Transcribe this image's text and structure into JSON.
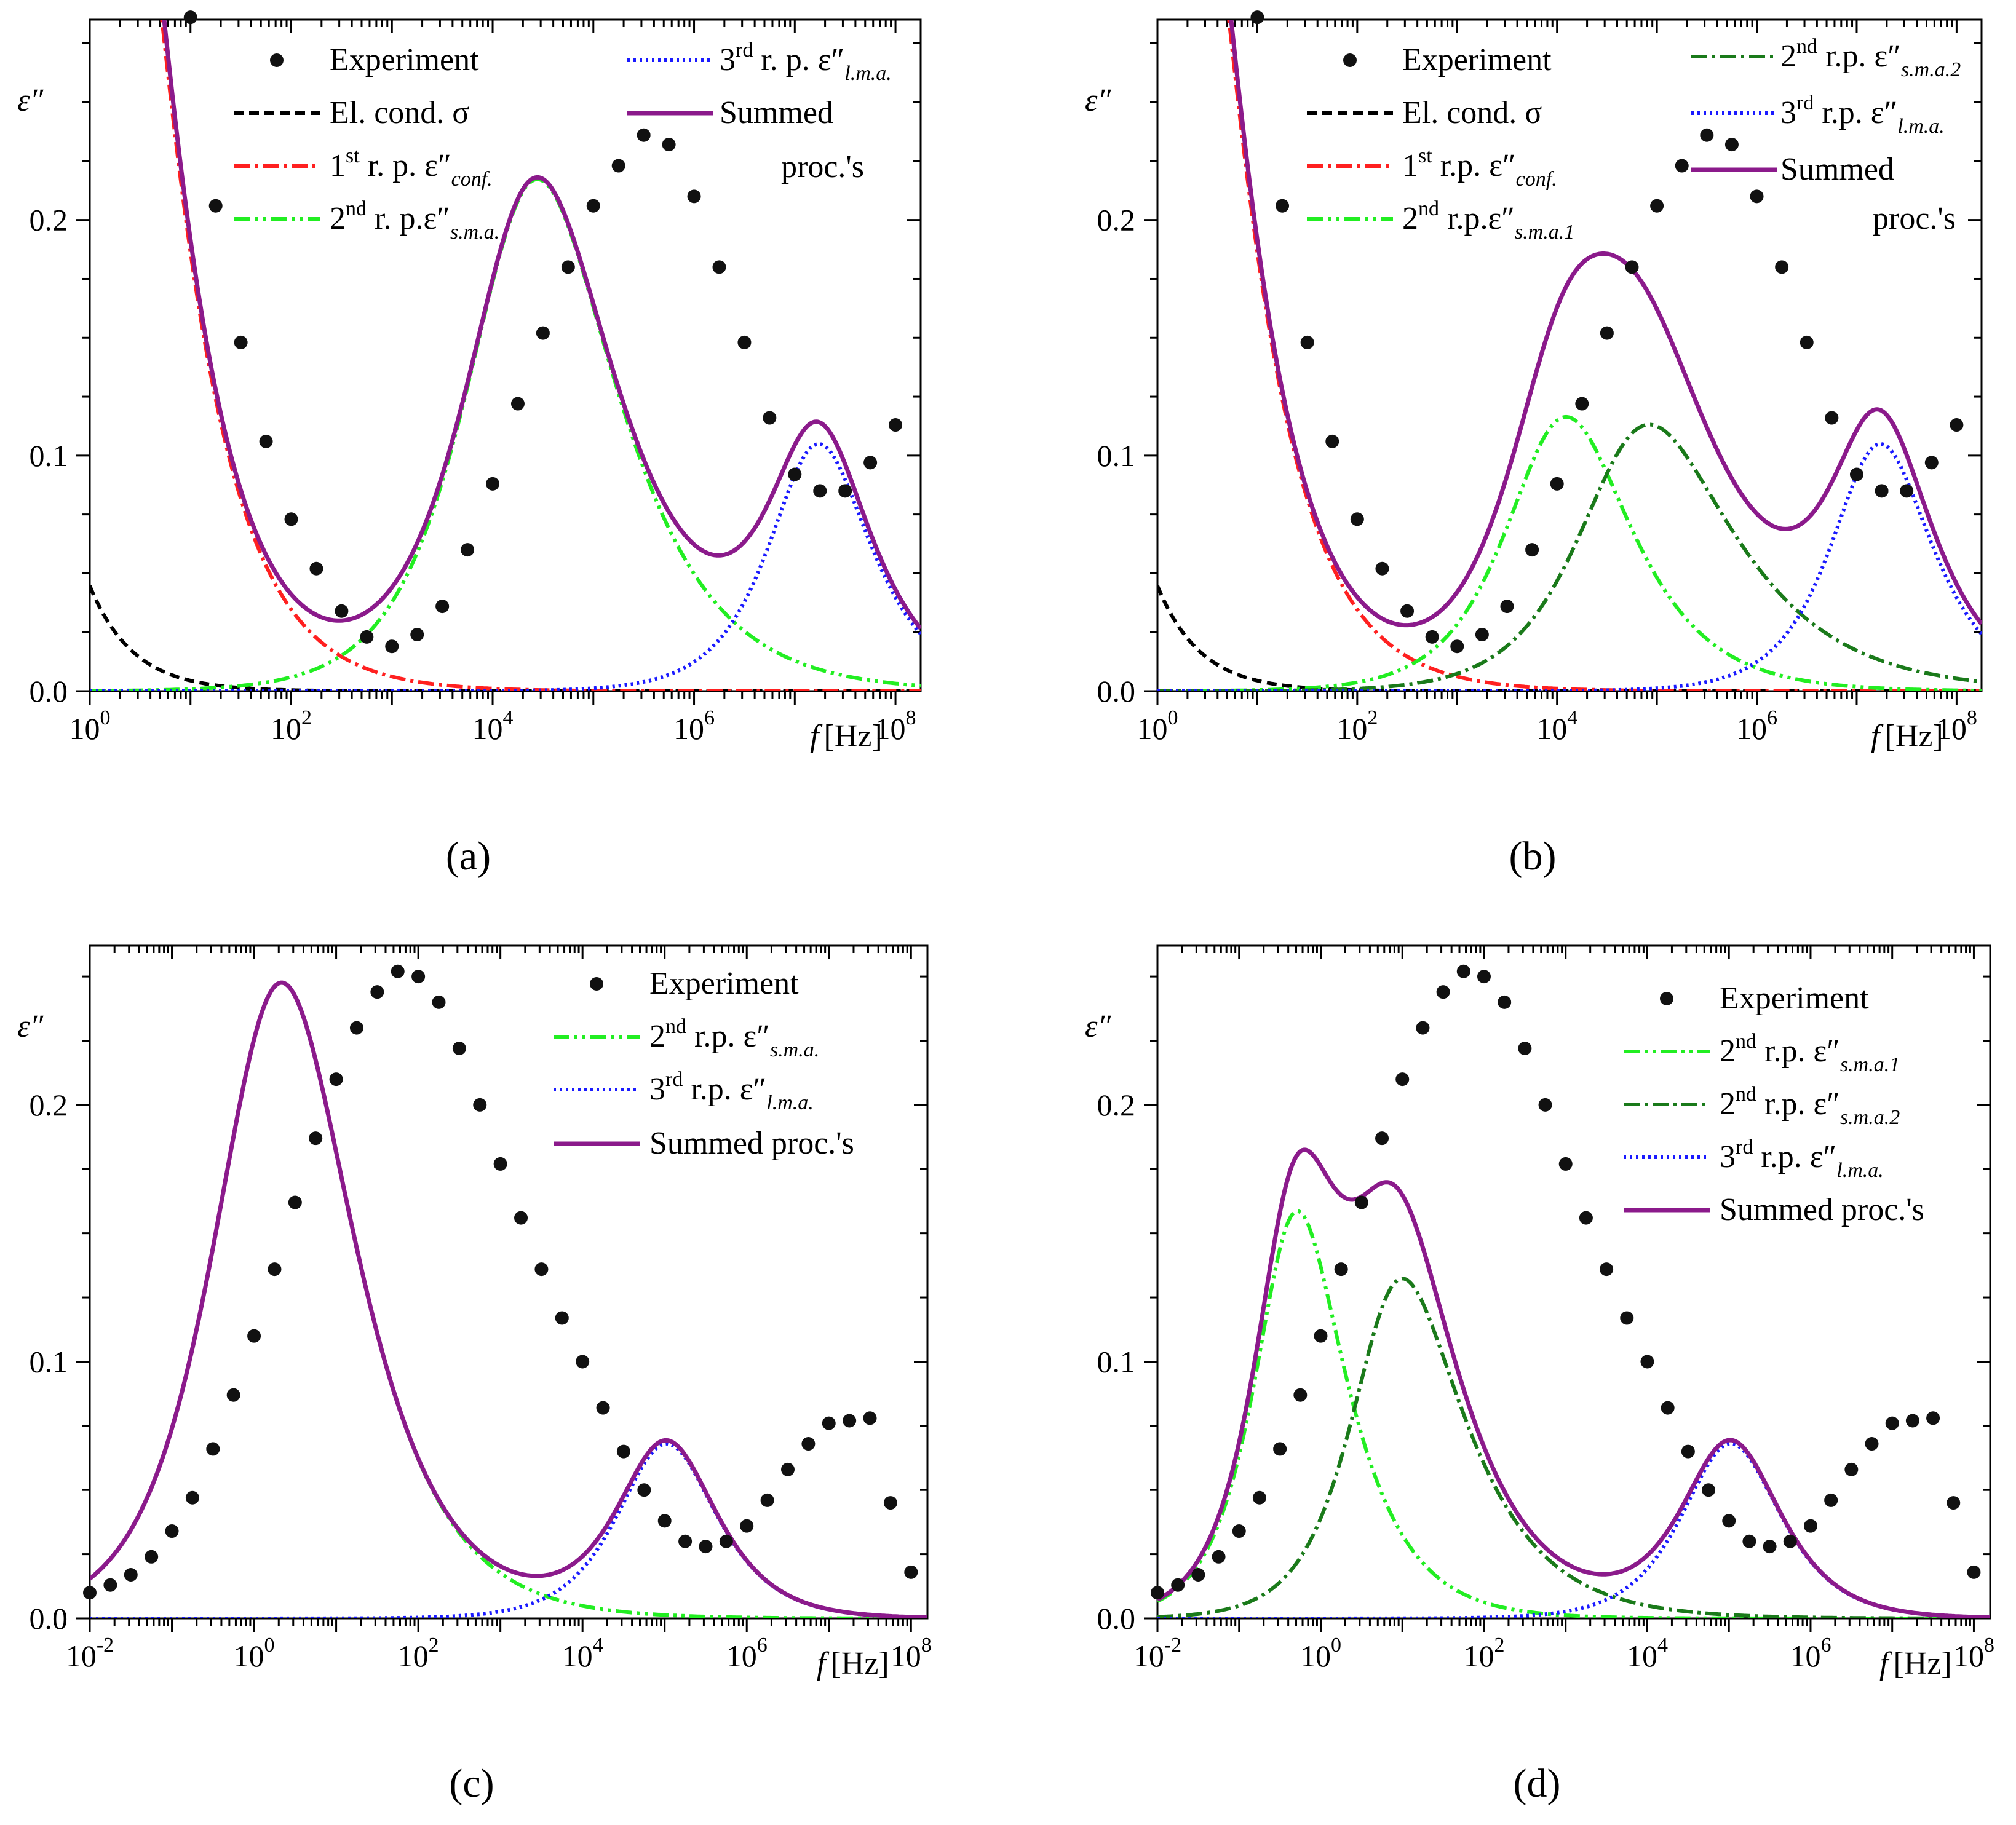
{
  "figure": {
    "panels": [
      {
        "label": "(a)",
        "y_axis_symbol": "ε″",
        "x_axis_label_f": "f",
        "x_axis_label_unit": "[Hz]",
        "legend": {
          "experiment": "Experiment",
          "el_cond": "El. cond. σ",
          "r1_prefix": "1",
          "r1_sup": "st",
          "r1_mid": " r. p. ε″",
          "r1_sub": "conf.",
          "r2a_prefix": "2",
          "r2a_sup": "nd",
          "r2a_mid": " r. p.ε″",
          "r2a_sub": "s.m.a.",
          "r3_prefix": "3",
          "r3_sup": "rd",
          "r3_mid": " r. p. ε″",
          "r3_sub": "l.m.a.",
          "summed_1": "Summed",
          "summed_2": "proc.'s"
        }
      },
      {
        "label": "(b)",
        "y_axis_symbol": "ε″",
        "x_axis_label_f": "f",
        "x_axis_label_unit": "[Hz]",
        "legend": {
          "experiment": "Experiment",
          "el_cond": "El. cond. σ",
          "r1_prefix": "1",
          "r1_sup": "st",
          "r1_mid": " r.p. ε″",
          "r1_sub": "conf.",
          "r2a_prefix": "2",
          "r2a_sup": "nd",
          "r2a_mid": " r.p.ε″",
          "r2a_sub": "s.m.a.1",
          "r2b_prefix": "2",
          "r2b_sup": "nd",
          "r2b_mid": " r.p. ε″",
          "r2b_sub": "s.m.a.2",
          "r3_prefix": "3",
          "r3_sup": "rd",
          "r3_mid": " r.p. ε″",
          "r3_sub": "l.m.a.",
          "summed_1": "Summed",
          "summed_2": "proc.'s"
        }
      },
      {
        "label": "(c)",
        "y_axis_symbol": "ε″",
        "x_axis_label_f": "f",
        "x_axis_label_unit": "[Hz]",
        "legend": {
          "experiment": "Experiment",
          "r2a_prefix": "2",
          "r2a_sup": "nd",
          "r2a_mid": " r.p. ε″",
          "r2a_sub": "s.m.a.",
          "r3_prefix": "3",
          "r3_sup": "rd",
          "r3_mid": " r.p. ε″",
          "r3_sub": "l.m.a.",
          "summed": "Summed proc.'s"
        }
      },
      {
        "label": "(d)",
        "y_axis_symbol": "ε″",
        "x_axis_label_f": "f",
        "x_axis_label_unit": "[Hz]",
        "legend": {
          "experiment": "Experiment",
          "r2a_prefix": "2",
          "r2a_sup": "nd",
          "r2a_mid": " r.p. ε″",
          "r2a_sub": "s.m.a.1",
          "r2b_prefix": "2",
          "r2b_sup": "nd",
          "r2b_mid": " r.p. ε″",
          "r2b_sub": "s.m.a.2",
          "r3_prefix": "3",
          "r3_sup": "rd",
          "r3_mid": " r.p. ε″",
          "r3_sub": "l.m.a.",
          "summed": "Summed proc.'s"
        }
      }
    ]
  },
  "colors": {
    "experiment": "#111111",
    "el_cond": "#000000",
    "r1": "#ff2020",
    "r2_light": "#22ee22",
    "r2_dark": "#1a7a1a",
    "r3": "#1a1aff",
    "summed": "#8b1a8b"
  },
  "chart_data": [
    {
      "type": "scatter",
      "panel": "(a)",
      "title": "",
      "xlabel": "f [Hz]",
      "ylabel": "ε″",
      "x_scale": "log",
      "xlim_log10": [
        0,
        8.25
      ],
      "ylim": [
        0,
        0.285
      ],
      "x_ticks_log10": [
        0,
        2,
        4,
        6,
        8
      ],
      "y_ticks": [
        0.0,
        0.1,
        0.2
      ],
      "y_tick_labels": [
        "0.0",
        "0.1",
        "0.2"
      ],
      "models": {
        "sigma": {
          "log10_A": -1.35,
          "slope": 1.0
        },
        "conf": {
          "de": 1.0,
          "log10_tau": -0.9,
          "alpha": 0.0,
          "beta": 0.75
        },
        "sma1": {
          "de": 0.66,
          "log10_tau": -5.1,
          "alpha": 0.18,
          "beta": 0.73
        },
        "lma": {
          "de": 0.22,
          "log10_tau": -8.0,
          "alpha": 0.0,
          "beta": 0.9
        }
      },
      "series": [
        {
          "name": "Experiment",
          "log10_f": [
            1,
            1.25,
            1.5,
            1.75,
            2,
            2.25,
            2.5,
            2.75,
            3,
            3.25,
            3.5,
            3.75,
            4,
            4.25,
            4.5,
            4.75,
            5,
            5.25,
            5.5,
            5.75,
            6,
            6.25,
            6.5,
            6.75,
            7,
            7.25,
            7.5,
            7.75,
            8
          ],
          "values": [
            0.286,
            0.206,
            0.148,
            0.106,
            0.073,
            0.052,
            0.034,
            0.023,
            0.019,
            0.024,
            0.036,
            0.06,
            0.088,
            0.122,
            0.152,
            0.18,
            0.206,
            0.223,
            0.236,
            0.232,
            0.21,
            0.18,
            0.148,
            0.116,
            0.092,
            0.085,
            0.085,
            0.097,
            0.113
          ]
        },
        {
          "name": "El. cond. σ",
          "model": "sigma"
        },
        {
          "name": "1st r. p. ε″conf.",
          "model": "conf"
        },
        {
          "name": "2nd r. p. ε″s.m.a.",
          "model": "sma1"
        },
        {
          "name": "3rd r. p. ε″l.m.a.",
          "model": "lma"
        },
        {
          "name": "Summed proc.'s",
          "model": "sum"
        }
      ]
    },
    {
      "type": "scatter",
      "panel": "(b)",
      "title": "",
      "xlabel": "f [Hz]",
      "ylabel": "ε″",
      "x_scale": "log",
      "xlim_log10": [
        0,
        8.25
      ],
      "ylim": [
        0,
        0.285
      ],
      "x_ticks_log10": [
        0,
        2,
        4,
        6,
        8
      ],
      "y_ticks": [
        0.0,
        0.1,
        0.2
      ],
      "y_tick_labels": [
        "0.0",
        "0.1",
        "0.2"
      ],
      "models": {
        "sigma": {
          "log10_A": -1.35,
          "slope": 1.0
        },
        "conf": {
          "de": 1.0,
          "log10_tau": -0.9,
          "alpha": 0.0,
          "beta": 0.75
        },
        "sma1": {
          "de": 0.3,
          "log10_tau": -4.8,
          "alpha": 0.1,
          "beta": 0.8
        },
        "sma2": {
          "de": 0.36,
          "log10_tau": -5.5,
          "alpha": 0.15,
          "beta": 0.6
        },
        "lma": {
          "de": 0.22,
          "log10_tau": -8.0,
          "alpha": 0.0,
          "beta": 0.9
        }
      },
      "series": [
        {
          "name": "Experiment",
          "log10_f": [
            1,
            1.25,
            1.5,
            1.75,
            2,
            2.25,
            2.5,
            2.75,
            3,
            3.25,
            3.5,
            3.75,
            4,
            4.25,
            4.5,
            4.75,
            5,
            5.25,
            5.5,
            5.75,
            6,
            6.25,
            6.5,
            6.75,
            7,
            7.25,
            7.5,
            7.75,
            8
          ],
          "values": [
            0.286,
            0.206,
            0.148,
            0.106,
            0.073,
            0.052,
            0.034,
            0.023,
            0.019,
            0.024,
            0.036,
            0.06,
            0.088,
            0.122,
            0.152,
            0.18,
            0.206,
            0.223,
            0.236,
            0.232,
            0.21,
            0.18,
            0.148,
            0.116,
            0.092,
            0.085,
            0.085,
            0.097,
            0.113
          ]
        },
        {
          "name": "El. cond. σ",
          "model": "sigma"
        },
        {
          "name": "1st r.p. ε″conf.",
          "model": "conf"
        },
        {
          "name": "2nd r.p. ε″s.m.a.1",
          "model": "sma1"
        },
        {
          "name": "2nd r.p. ε″s.m.a.2",
          "model": "sma2"
        },
        {
          "name": "3rd r.p. ε″l.m.a.",
          "model": "lma"
        },
        {
          "name": "Summed proc.'s",
          "model": "sum"
        }
      ]
    },
    {
      "type": "scatter",
      "panel": "(c)",
      "title": "",
      "xlabel": "f [Hz]",
      "ylabel": "ε″",
      "x_scale": "log",
      "xlim_log10": [
        -2,
        8.2
      ],
      "ylim": [
        0,
        0.262
      ],
      "x_ticks_log10": [
        -2,
        0,
        2,
        4,
        6,
        8
      ],
      "y_ticks": [
        0.0,
        0.1,
        0.2
      ],
      "y_tick_labels": [
        "0.0",
        "0.1",
        "0.2"
      ],
      "models": {
        "sma1": {
          "de": 0.86,
          "log10_tau": -1.0,
          "alpha": 0.28,
          "beta": 0.78
        },
        "lma": {
          "de": 0.168,
          "log10_tau": -5.8,
          "alpha": 0.12,
          "beta": 0.95
        }
      },
      "series": [
        {
          "name": "Experiment",
          "log10_f": [
            -2,
            -1.75,
            -1.5,
            -1.25,
            -1,
            -0.75,
            -0.5,
            -0.25,
            0,
            0.25,
            0.5,
            0.75,
            1,
            1.25,
            1.5,
            1.75,
            2,
            2.25,
            2.5,
            2.75,
            3,
            3.25,
            3.5,
            3.75,
            4,
            4.25,
            4.5,
            4.75,
            5,
            5.25,
            5.5,
            5.75,
            6,
            6.25,
            6.5,
            6.75,
            7,
            7.25,
            7.5,
            7.75,
            8
          ],
          "values": [
            0.01,
            0.013,
            0.017,
            0.024,
            0.034,
            0.047,
            0.066,
            0.087,
            0.11,
            0.136,
            0.162,
            0.187,
            0.21,
            0.23,
            0.244,
            0.252,
            0.25,
            0.24,
            0.222,
            0.2,
            0.177,
            0.156,
            0.136,
            0.117,
            0.1,
            0.082,
            0.065,
            0.05,
            0.038,
            0.03,
            0.028,
            0.03,
            0.036,
            0.046,
            0.058,
            0.068,
            0.076,
            0.077,
            0.078,
            0.045,
            0.018
          ]
        },
        {
          "name": "2nd r.p. ε″s.m.a.",
          "model": "sma1"
        },
        {
          "name": "3rd r.p. ε″l.m.a.",
          "model": "lma"
        },
        {
          "name": "Summed proc.'s",
          "model": "sum"
        }
      ]
    },
    {
      "type": "scatter",
      "panel": "(d)",
      "title": "",
      "xlabel": "f [Hz]",
      "ylabel": "ε″",
      "x_scale": "log",
      "xlim_log10": [
        -2,
        8.2
      ],
      "ylim": [
        0,
        0.262
      ],
      "x_ticks_log10": [
        -2,
        0,
        2,
        4,
        6,
        8
      ],
      "y_ticks": [
        0.0,
        0.1,
        0.2
      ],
      "y_tick_labels": [
        "0.0",
        "0.1",
        "0.2"
      ],
      "models": {
        "sma1": {
          "de": 0.37,
          "log10_tau": -0.4,
          "alpha": 0.0,
          "beta": 0.72
        },
        "sma2": {
          "de": 0.38,
          "log10_tau": -1.6,
          "alpha": 0.08,
          "beta": 0.6
        },
        "lma": {
          "de": 0.168,
          "log10_tau": -5.8,
          "alpha": 0.12,
          "beta": 0.95
        }
      },
      "series": [
        {
          "name": "Experiment",
          "log10_f": [
            -2,
            -1.75,
            -1.5,
            -1.25,
            -1,
            -0.75,
            -0.5,
            -0.25,
            0,
            0.25,
            0.5,
            0.75,
            1,
            1.25,
            1.5,
            1.75,
            2,
            2.25,
            2.5,
            2.75,
            3,
            3.25,
            3.5,
            3.75,
            4,
            4.25,
            4.5,
            4.75,
            5,
            5.25,
            5.5,
            5.75,
            6,
            6.25,
            6.5,
            6.75,
            7,
            7.25,
            7.5,
            7.75,
            8
          ],
          "values": [
            0.01,
            0.013,
            0.017,
            0.024,
            0.034,
            0.047,
            0.066,
            0.087,
            0.11,
            0.136,
            0.162,
            0.187,
            0.21,
            0.23,
            0.244,
            0.252,
            0.25,
            0.24,
            0.222,
            0.2,
            0.177,
            0.156,
            0.136,
            0.117,
            0.1,
            0.082,
            0.065,
            0.05,
            0.038,
            0.03,
            0.028,
            0.03,
            0.036,
            0.046,
            0.058,
            0.068,
            0.076,
            0.077,
            0.078,
            0.045,
            0.018
          ]
        },
        {
          "name": "2nd r.p. ε″s.m.a.1",
          "model": "sma1"
        },
        {
          "name": "2nd r.p. ε″s.m.a.2",
          "model": "sma2"
        },
        {
          "name": "3rd r.p. ε″l.m.a.",
          "model": "lma"
        },
        {
          "name": "Summed proc.'s",
          "model": "sum"
        }
      ]
    }
  ]
}
